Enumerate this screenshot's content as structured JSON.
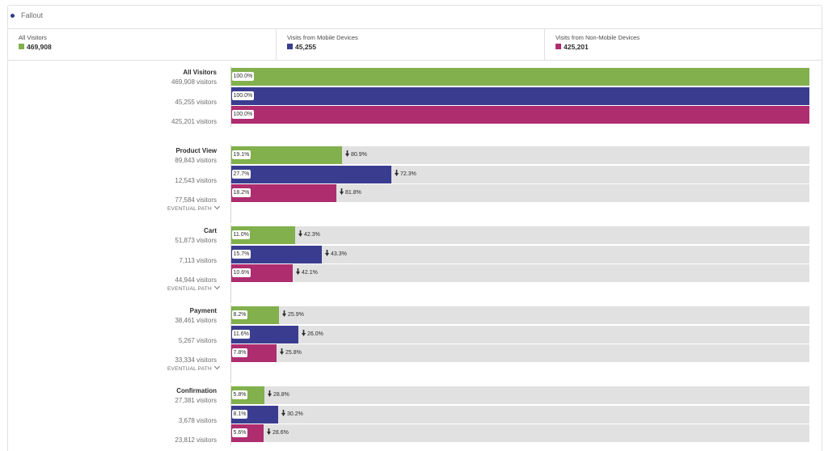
{
  "panel": {
    "title": "Fallout"
  },
  "colors": {
    "all": "#82b04d",
    "mobile": "#3a3d8f",
    "nonmobile": "#ae2d6f",
    "track": "#e1e1e1"
  },
  "segments": [
    {
      "key": "all",
      "name": "All Visitors",
      "count": "469,908"
    },
    {
      "key": "mobile",
      "name": "Visits from Mobile Devices",
      "count": "45,255"
    },
    {
      "key": "nonmobile",
      "name": "Visits from Non-Mobile Devices",
      "count": "425,201"
    }
  ],
  "labels": {
    "eventual_path": "EVENTUAL PATH",
    "visitors_suffix": " visitors"
  },
  "chart_data": {
    "type": "bar",
    "orientation": "horizontal",
    "title": "Fallout",
    "series": [
      {
        "name": "All Visitors",
        "key": "all"
      },
      {
        "name": "Visits from Mobile Devices",
        "key": "mobile"
      },
      {
        "name": "Visits from Non-Mobile Devices",
        "key": "nonmobile"
      }
    ],
    "steps": [
      {
        "name": "All Visitors",
        "eventual_path": false,
        "rows": [
          {
            "series": "all",
            "visitors": "469,908",
            "percent": 100.0,
            "percent_label": "100.0%",
            "drop_label": null
          },
          {
            "series": "mobile",
            "visitors": "45,255",
            "percent": 100.0,
            "percent_label": "100.0%",
            "drop_label": null
          },
          {
            "series": "nonmobile",
            "visitors": "425,201",
            "percent": 100.0,
            "percent_label": "100.0%",
            "drop_label": null
          }
        ]
      },
      {
        "name": "Product View",
        "eventual_path": true,
        "rows": [
          {
            "series": "all",
            "visitors": "89,843",
            "percent": 19.1,
            "percent_label": "19.1%",
            "drop_label": "80.9%"
          },
          {
            "series": "mobile",
            "visitors": "12,543",
            "percent": 27.7,
            "percent_label": "27.7%",
            "drop_label": "72.3%"
          },
          {
            "series": "nonmobile",
            "visitors": "77,584",
            "percent": 18.2,
            "percent_label": "18.2%",
            "drop_label": "81.8%"
          }
        ]
      },
      {
        "name": "Cart",
        "eventual_path": true,
        "rows": [
          {
            "series": "all",
            "visitors": "51,873",
            "percent": 11.0,
            "percent_label": "11.0%",
            "drop_label": "42.3%"
          },
          {
            "series": "mobile",
            "visitors": "7,113",
            "percent": 15.7,
            "percent_label": "15.7%",
            "drop_label": "43.3%"
          },
          {
            "series": "nonmobile",
            "visitors": "44,944",
            "percent": 10.6,
            "percent_label": "10.6%",
            "drop_label": "42.1%"
          }
        ]
      },
      {
        "name": "Payment",
        "eventual_path": true,
        "rows": [
          {
            "series": "all",
            "visitors": "38,461",
            "percent": 8.2,
            "percent_label": "8.2%",
            "drop_label": "25.9%"
          },
          {
            "series": "mobile",
            "visitors": "5,267",
            "percent": 11.6,
            "percent_label": "11.6%",
            "drop_label": "26.0%"
          },
          {
            "series": "nonmobile",
            "visitors": "33,334",
            "percent": 7.8,
            "percent_label": "7.8%",
            "drop_label": "25.8%"
          }
        ]
      },
      {
        "name": "Confirmation",
        "eventual_path": false,
        "rows": [
          {
            "series": "all",
            "visitors": "27,381",
            "percent": 5.8,
            "percent_label": "5.8%",
            "drop_label": "28.8%"
          },
          {
            "series": "mobile",
            "visitors": "3,678",
            "percent": 8.1,
            "percent_label": "8.1%",
            "drop_label": "30.2%"
          },
          {
            "series": "nonmobile",
            "visitors": "23,812",
            "percent": 5.6,
            "percent_label": "5.6%",
            "drop_label": "28.6%"
          }
        ]
      }
    ],
    "xlim": [
      0,
      100
    ]
  }
}
